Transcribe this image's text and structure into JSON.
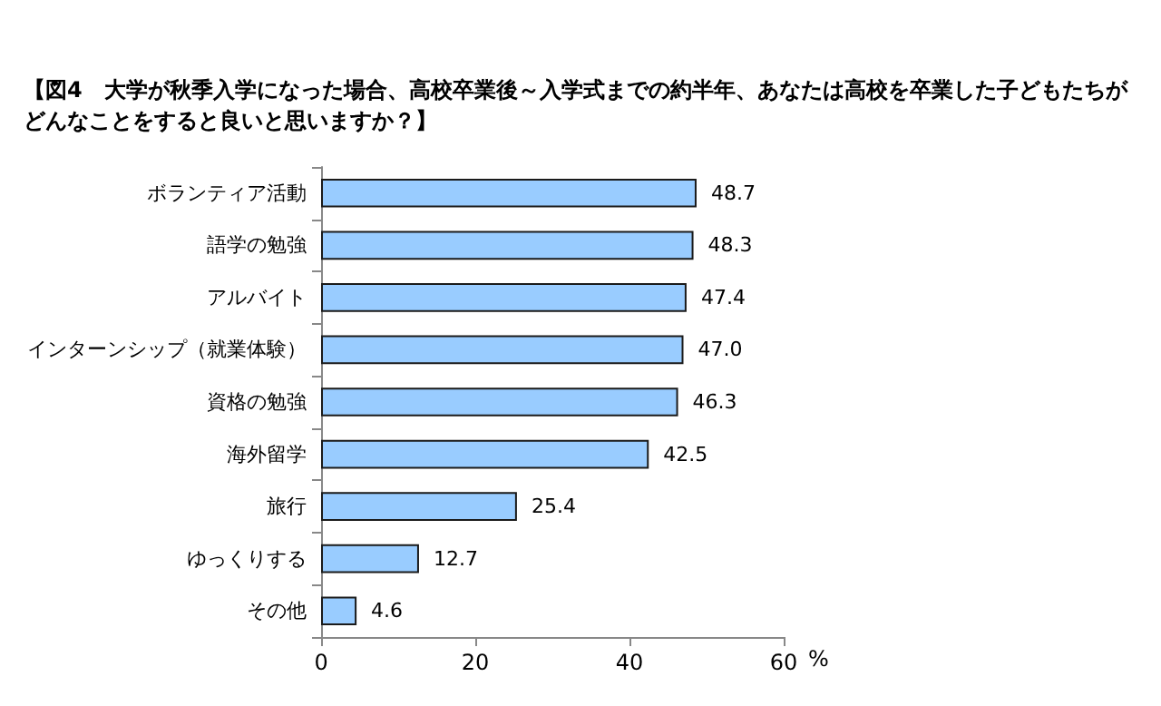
{
  "chart_data": {
    "type": "bar",
    "orientation": "horizontal",
    "title": "【図4　大学が秋季入学になった場合、高校卒業後～入学式までの約半年、あなたは高校を卒業した子どもたちがどんなことをすると良いと思いますか？】",
    "xlabel": "%",
    "categories": [
      "ボランティア活動",
      "語学の勉強",
      "アルバイト",
      "インターンシップ（就業体験）",
      "資格の勉強",
      "海外留学",
      "旅行",
      "ゆっくりする",
      "その他"
    ],
    "values": [
      48.7,
      48.3,
      47.4,
      47.0,
      46.3,
      42.5,
      25.4,
      12.7,
      4.6
    ],
    "value_labels": [
      "48.7",
      "48.3",
      "47.4",
      "47.0",
      "46.3",
      "42.5",
      "25.4",
      "12.7",
      "4.6"
    ],
    "color": "#99ccff",
    "xlim": [
      0,
      60
    ],
    "xticks": [
      0,
      20,
      40,
      60
    ],
    "grid": false
  }
}
